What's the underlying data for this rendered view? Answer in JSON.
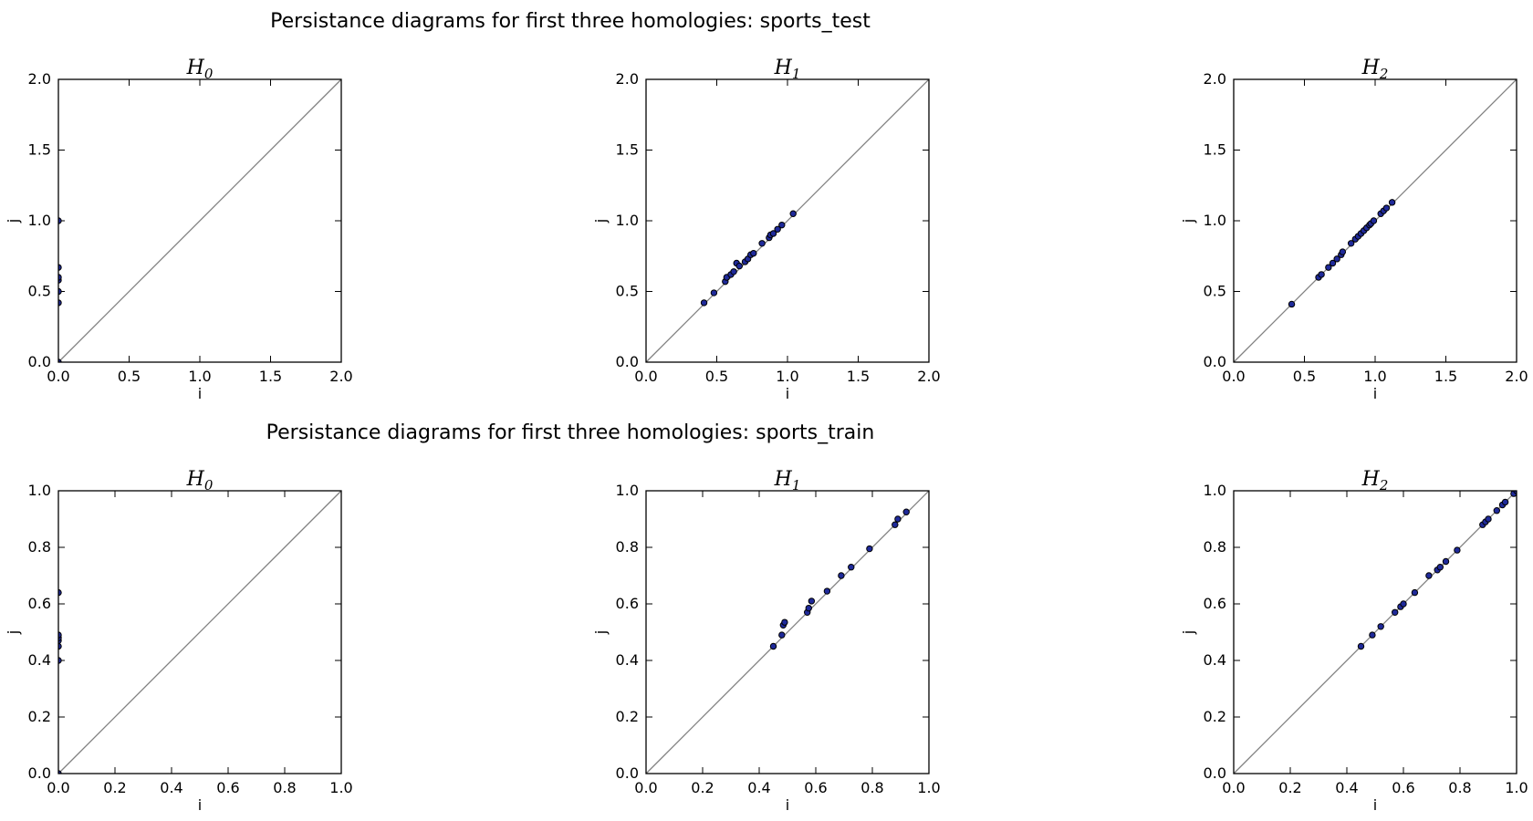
{
  "figure": {
    "rows": [
      {
        "suptitle": "Persistance diagrams for first three homologies: sports_test"
      },
      {
        "suptitle": "Persistance diagrams for first three homologies: sports_train"
      }
    ]
  },
  "colors": {
    "points": "#1f2a9a",
    "diagonal": "#808080",
    "frame": "#000000"
  },
  "chart_data": [
    {
      "type": "scatter",
      "title": "H",
      "title_sub": "0",
      "xlabel": "i",
      "ylabel": "j",
      "xlim": [
        0,
        2
      ],
      "ylim": [
        0,
        2
      ],
      "ticks": [
        0.0,
        0.5,
        1.0,
        1.5,
        2.0
      ],
      "tick_decimals": 1,
      "diagonal": true,
      "points": [
        [
          0,
          0
        ],
        [
          0,
          0.42
        ],
        [
          0,
          0.5
        ],
        [
          0,
          0.58
        ],
        [
          0,
          0.6
        ],
        [
          0,
          0.67
        ],
        [
          0,
          1.0
        ]
      ]
    },
    {
      "type": "scatter",
      "title": "H",
      "title_sub": "1",
      "xlabel": "i",
      "ylabel": "j",
      "xlim": [
        0,
        2
      ],
      "ylim": [
        0,
        2
      ],
      "ticks": [
        0.0,
        0.5,
        1.0,
        1.5,
        2.0
      ],
      "tick_decimals": 1,
      "diagonal": true,
      "points": [
        [
          0.41,
          0.42
        ],
        [
          0.48,
          0.49
        ],
        [
          0.56,
          0.57
        ],
        [
          0.57,
          0.6
        ],
        [
          0.6,
          0.62
        ],
        [
          0.62,
          0.64
        ],
        [
          0.64,
          0.7
        ],
        [
          0.66,
          0.68
        ],
        [
          0.7,
          0.71
        ],
        [
          0.72,
          0.73
        ],
        [
          0.74,
          0.76
        ],
        [
          0.76,
          0.77
        ],
        [
          0.82,
          0.84
        ],
        [
          0.87,
          0.88
        ],
        [
          0.88,
          0.9
        ],
        [
          0.9,
          0.91
        ],
        [
          0.93,
          0.94
        ],
        [
          0.96,
          0.97
        ],
        [
          1.04,
          1.05
        ]
      ]
    },
    {
      "type": "scatter",
      "title": "H",
      "title_sub": "2",
      "xlabel": "i",
      "ylabel": "j",
      "xlim": [
        0,
        2
      ],
      "ylim": [
        0,
        2
      ],
      "ticks": [
        0.0,
        0.5,
        1.0,
        1.5,
        2.0
      ],
      "tick_decimals": 1,
      "diagonal": true,
      "points": [
        [
          0.41,
          0.41
        ],
        [
          0.6,
          0.6
        ],
        [
          0.62,
          0.62
        ],
        [
          0.67,
          0.67
        ],
        [
          0.7,
          0.7
        ],
        [
          0.73,
          0.73
        ],
        [
          0.76,
          0.76
        ],
        [
          0.77,
          0.78
        ],
        [
          0.83,
          0.84
        ],
        [
          0.86,
          0.87
        ],
        [
          0.88,
          0.89
        ],
        [
          0.9,
          0.91
        ],
        [
          0.92,
          0.93
        ],
        [
          0.94,
          0.95
        ],
        [
          0.96,
          0.97
        ],
        [
          0.97,
          0.98
        ],
        [
          0.99,
          1.0
        ],
        [
          1.04,
          1.05
        ],
        [
          1.06,
          1.07
        ],
        [
          1.08,
          1.09
        ],
        [
          1.12,
          1.13
        ]
      ]
    },
    {
      "type": "scatter",
      "title": "H",
      "title_sub": "0",
      "xlabel": "i",
      "ylabel": "j",
      "xlim": [
        0,
        1
      ],
      "ylim": [
        0,
        1
      ],
      "ticks": [
        0.0,
        0.2,
        0.4,
        0.6,
        0.8,
        1.0
      ],
      "tick_decimals": 1,
      "diagonal": true,
      "points": [
        [
          0,
          0
        ],
        [
          0,
          0.4
        ],
        [
          0,
          0.45
        ],
        [
          0,
          0.47
        ],
        [
          0,
          0.48
        ],
        [
          0,
          0.49
        ],
        [
          0,
          0.64
        ]
      ]
    },
    {
      "type": "scatter",
      "title": "H",
      "title_sub": "1",
      "xlabel": "i",
      "ylabel": "j",
      "xlim": [
        0,
        1
      ],
      "ylim": [
        0,
        1
      ],
      "ticks": [
        0.0,
        0.2,
        0.4,
        0.6,
        0.8,
        1.0
      ],
      "tick_decimals": 1,
      "diagonal": true,
      "points": [
        [
          0.45,
          0.45
        ],
        [
          0.48,
          0.49
        ],
        [
          0.485,
          0.525
        ],
        [
          0.49,
          0.535
        ],
        [
          0.57,
          0.57
        ],
        [
          0.575,
          0.585
        ],
        [
          0.585,
          0.61
        ],
        [
          0.64,
          0.645
        ],
        [
          0.69,
          0.7
        ],
        [
          0.725,
          0.73
        ],
        [
          0.79,
          0.795
        ],
        [
          0.88,
          0.88
        ],
        [
          0.89,
          0.9
        ],
        [
          0.92,
          0.925
        ]
      ]
    },
    {
      "type": "scatter",
      "title": "H",
      "title_sub": "2",
      "xlabel": "i",
      "ylabel": "j",
      "xlim": [
        0,
        1
      ],
      "ylim": [
        0,
        1
      ],
      "ticks": [
        0.0,
        0.2,
        0.4,
        0.6,
        0.8,
        1.0
      ],
      "tick_decimals": 1,
      "diagonal": true,
      "points": [
        [
          0.45,
          0.45
        ],
        [
          0.49,
          0.49
        ],
        [
          0.52,
          0.52
        ],
        [
          0.57,
          0.57
        ],
        [
          0.59,
          0.59
        ],
        [
          0.6,
          0.6
        ],
        [
          0.64,
          0.64
        ],
        [
          0.69,
          0.7
        ],
        [
          0.72,
          0.72
        ],
        [
          0.73,
          0.73
        ],
        [
          0.75,
          0.75
        ],
        [
          0.79,
          0.79
        ],
        [
          0.88,
          0.88
        ],
        [
          0.89,
          0.89
        ],
        [
          0.9,
          0.9
        ],
        [
          0.93,
          0.93
        ],
        [
          0.95,
          0.95
        ],
        [
          0.96,
          0.96
        ],
        [
          0.99,
          0.99
        ],
        [
          1.0,
          1.0
        ]
      ]
    }
  ]
}
